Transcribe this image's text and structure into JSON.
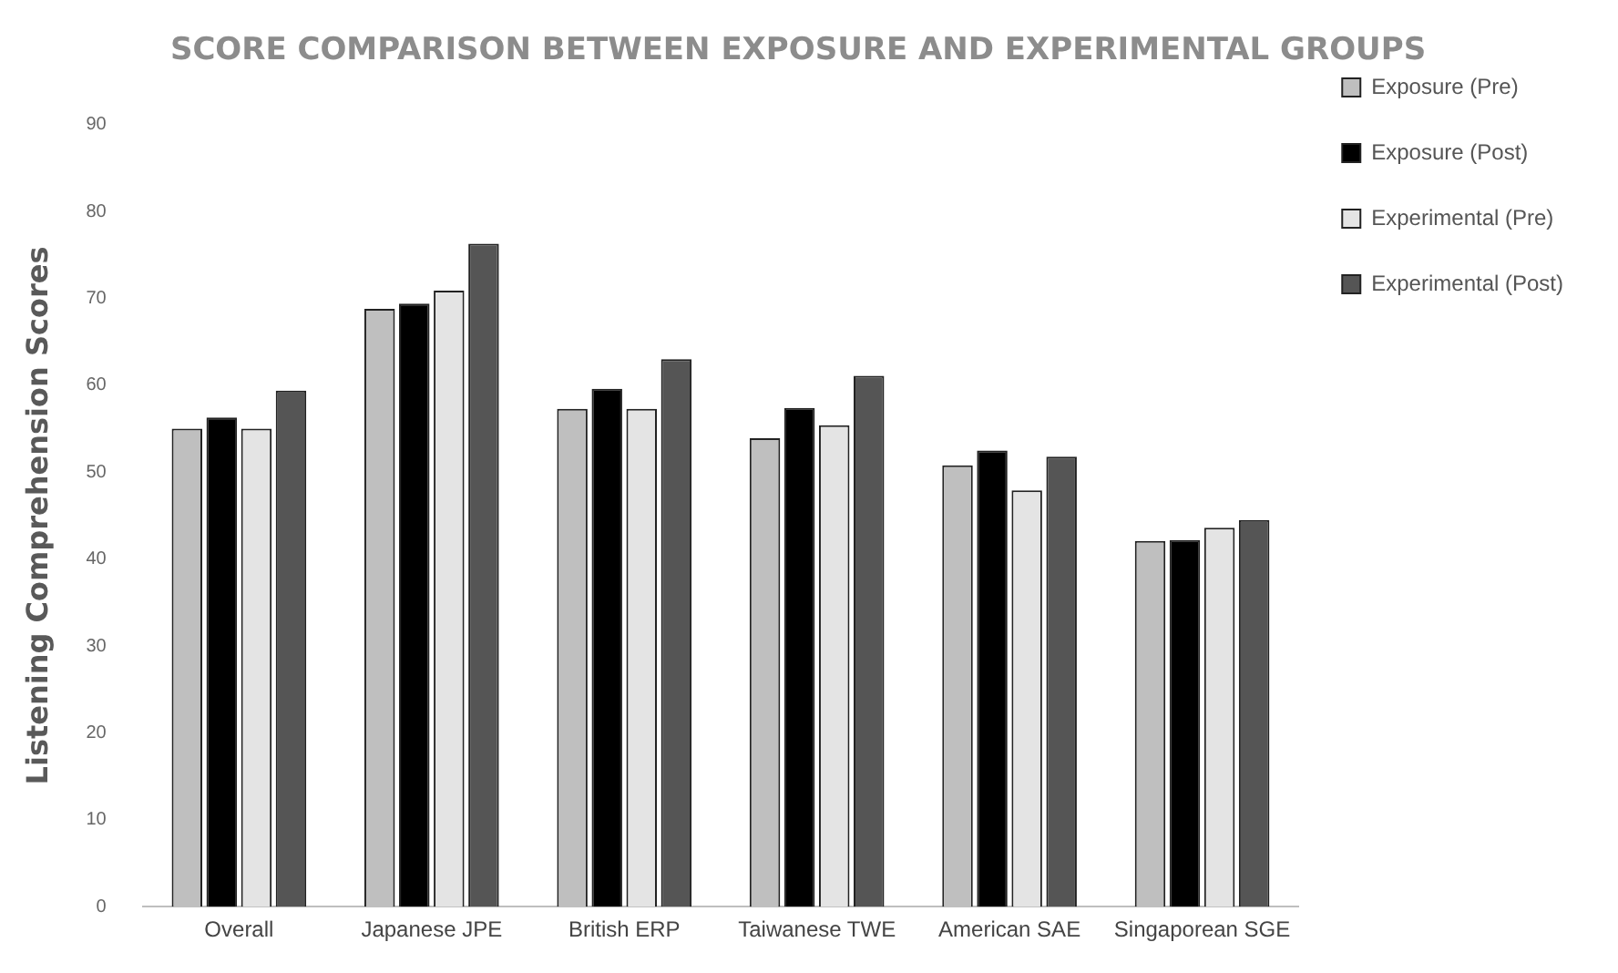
{
  "chart_data": {
    "type": "bar",
    "title": "SCORE COMPARISON BETWEEN EXPOSURE AND EXPERIMENTAL GROUPS",
    "ylabel": "Listening Comprehension Scores",
    "categories": [
      "Overall",
      "Japanese JPE",
      "British ERP",
      "Taiwanese TWE",
      "American SAE",
      "Singaporean SGE"
    ],
    "series": [
      {
        "name": "Exposure (Pre)",
        "color": "#bfbfbf",
        "values": [
          55,
          68.8,
          57.3,
          53.9,
          50.8,
          42.1
        ]
      },
      {
        "name": "Exposure (Post)",
        "color": "#000000",
        "values": [
          56.3,
          69.4,
          59.6,
          57.4,
          52.5,
          42.2
        ]
      },
      {
        "name": "Experimental (Pre)",
        "color": "#e4e4e4",
        "values": [
          55,
          70.9,
          57.3,
          55.4,
          47.9,
          43.6
        ]
      },
      {
        "name": "Experimental (Post)",
        "color": "#555555",
        "values": [
          59.4,
          76.3,
          63,
          61.1,
          51.8,
          44.5
        ]
      }
    ],
    "ylim": [
      0,
      90
    ],
    "yticks": [
      0,
      10,
      20,
      30,
      40,
      50,
      60,
      70,
      80,
      90
    ],
    "grid": false,
    "legend": "top right"
  }
}
